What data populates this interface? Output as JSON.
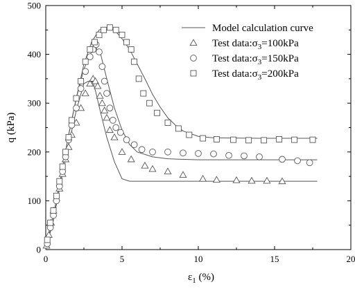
{
  "chart_data": {
    "type": "scatter",
    "xlabel": "ε",
    "xlabel_sub": "1",
    "xlabel_unit": " (%)",
    "ylabel": "q (kPa)",
    "xlim": [
      0,
      20
    ],
    "ylim": [
      0,
      500
    ],
    "x_ticks": [
      0,
      5,
      10,
      15,
      20
    ],
    "y_ticks": [
      0,
      100,
      200,
      300,
      400,
      500
    ],
    "grid": false,
    "legend_position": "top-right",
    "legend": [
      {
        "marker": "line",
        "text": "Model calculation curve"
      },
      {
        "marker": "triangle",
        "prefix": "Test data:σ",
        "sub": "3",
        "suffix": "=100kPa"
      },
      {
        "marker": "circle",
        "prefix": "Test data:σ",
        "sub": "3",
        "suffix": "=150kPa"
      },
      {
        "marker": "square",
        "prefix": "Test data:σ",
        "sub": "3",
        "suffix": "=200kPa"
      }
    ],
    "model_curves": [
      {
        "x": [
          0,
          0.5,
          1.0,
          1.5,
          2.0,
          2.5,
          2.8,
          3.1,
          3.3,
          3.6,
          4.0,
          4.5,
          5.0,
          5.5,
          6.5,
          8,
          10,
          14,
          17.8
        ],
        "y": [
          0,
          60,
          140,
          215,
          285,
          340,
          345,
          343,
          320,
          280,
          230,
          180,
          145,
          140,
          140,
          140,
          140,
          140,
          140
        ]
      },
      {
        "x": [
          0,
          0.5,
          1.0,
          1.5,
          2.0,
          2.5,
          3.0,
          3.3,
          3.6,
          4.0,
          4.5,
          5.0,
          5.5,
          6.0,
          7.0,
          8.0,
          10,
          14,
          17.8
        ],
        "y": [
          0,
          70,
          150,
          235,
          310,
          370,
          405,
          413,
          400,
          350,
          290,
          245,
          215,
          200,
          190,
          186,
          184,
          184,
          184
        ]
      },
      {
        "x": [
          0,
          0.5,
          1.0,
          1.5,
          2.0,
          2.5,
          3.0,
          3.5,
          4.0,
          4.5,
          5.0,
          5.5,
          6.0,
          6.5,
          7.0,
          7.5,
          8.0,
          8.5,
          9.0,
          10,
          11,
          14,
          17.8
        ],
        "y": [
          0,
          70,
          150,
          235,
          310,
          380,
          425,
          450,
          455,
          450,
          432,
          410,
          380,
          350,
          318,
          292,
          270,
          255,
          243,
          232,
          229,
          228,
          228
        ]
      }
    ],
    "series": [
      {
        "marker": "triangle",
        "x": [
          0.05,
          0.2,
          0.35,
          0.5,
          0.7,
          0.9,
          1.1,
          1.3,
          1.5,
          1.7,
          2.0,
          2.3,
          2.6,
          2.9,
          3.1,
          3.25,
          3.4,
          3.55,
          3.7,
          3.85,
          4.0,
          4.2,
          4.5,
          5.0,
          5.6,
          6.5,
          7.0,
          8.0,
          9.0,
          10.3,
          11.2,
          12.5,
          13.5,
          14.5,
          15.5
        ],
        "y": [
          8,
          30,
          55,
          80,
          105,
          125,
          155,
          185,
          210,
          235,
          260,
          290,
          320,
          340,
          350,
          345,
          335,
          315,
          300,
          285,
          270,
          245,
          230,
          200,
          185,
          172,
          165,
          160,
          153,
          145,
          143,
          142,
          141,
          141,
          140
        ]
      },
      {
        "marker": "circle",
        "x": [
          0.1,
          0.3,
          0.5,
          0.7,
          0.9,
          1.1,
          1.3,
          1.5,
          1.7,
          2.0,
          2.3,
          2.6,
          2.9,
          3.1,
          3.3,
          3.5,
          3.7,
          3.85,
          4.0,
          4.2,
          4.4,
          4.6,
          4.9,
          5.3,
          5.8,
          6.3,
          7.0,
          8.0,
          9.0,
          10.0,
          11.0,
          12.0,
          13.0,
          14.0,
          15.5,
          16.5,
          17.3
        ],
        "y": [
          12,
          45,
          70,
          100,
          130,
          160,
          190,
          225,
          255,
          290,
          330,
          365,
          395,
          410,
          420,
          405,
          375,
          345,
          320,
          290,
          265,
          250,
          240,
          225,
          215,
          205,
          200,
          200,
          198,
          197,
          196,
          193,
          192,
          190,
          185,
          182,
          178
        ]
      },
      {
        "marker": "square",
        "x": [
          0.1,
          0.3,
          0.5,
          0.7,
          0.9,
          1.1,
          1.3,
          1.5,
          1.7,
          2.0,
          2.3,
          2.6,
          2.9,
          3.2,
          3.5,
          3.8,
          4.2,
          4.6,
          5.0,
          5.3,
          5.6,
          5.8,
          6.1,
          6.4,
          6.8,
          7.3,
          8.0,
          8.7,
          9.4,
          10.3,
          11.2,
          12.3,
          13.3,
          14.3,
          15.3,
          16.3,
          17.5
        ],
        "y": [
          20,
          55,
          80,
          110,
          140,
          170,
          200,
          230,
          265,
          310,
          345,
          385,
          410,
          425,
          440,
          450,
          455,
          450,
          440,
          425,
          410,
          385,
          350,
          320,
          300,
          280,
          260,
          248,
          235,
          228,
          226,
          225,
          224,
          224,
          226,
          225,
          225
        ]
      }
    ]
  }
}
